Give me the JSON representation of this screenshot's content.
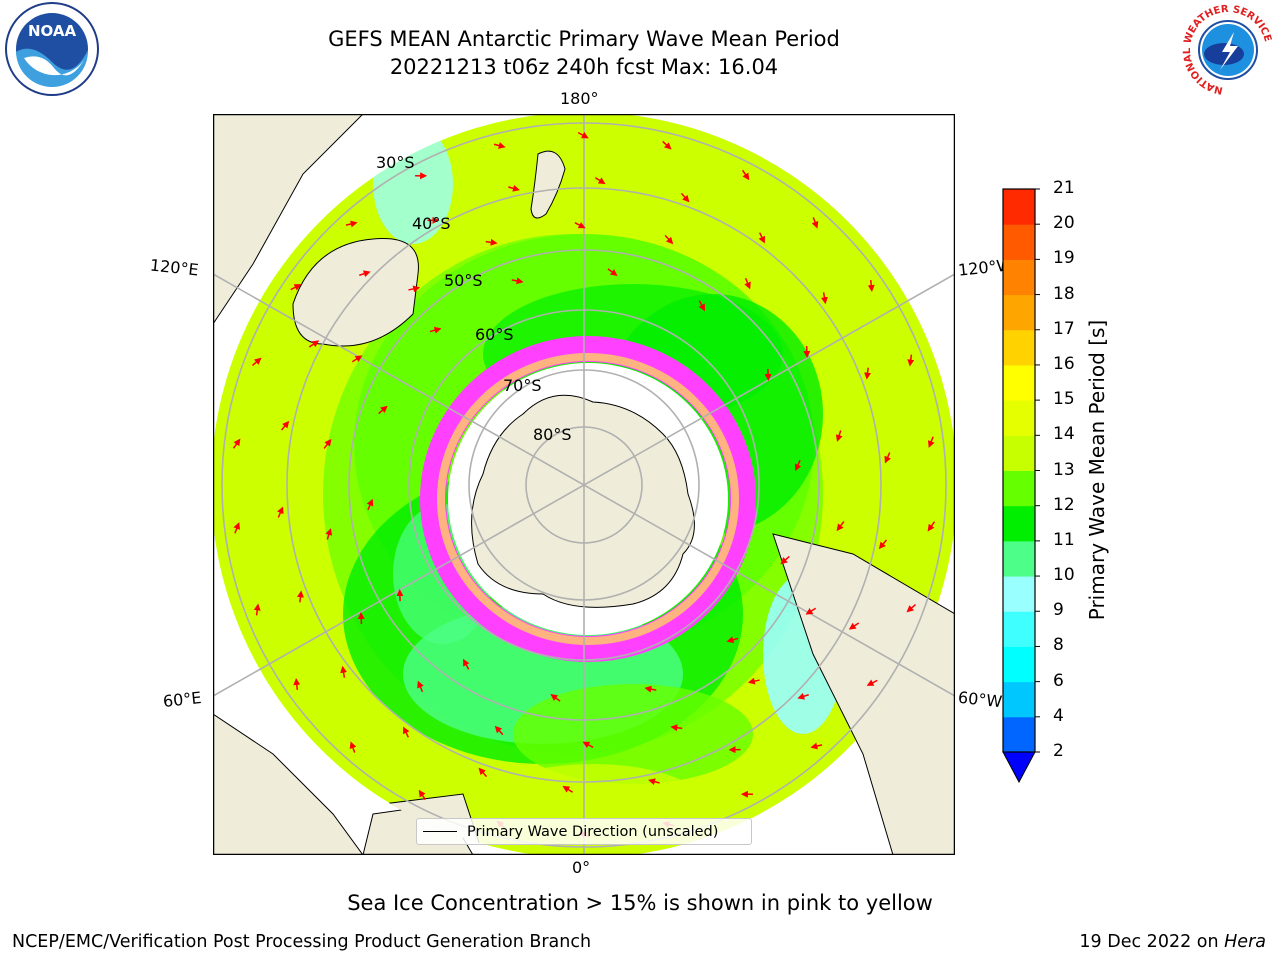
{
  "title": {
    "line1": "GEFS MEAN Antarctic Primary Wave Mean Period",
    "line2": "20221213 t06z 240h fcst   Max: 16.04"
  },
  "logos": {
    "left": "NOAA",
    "right_ring": "NATIONAL WEATHER SERVICE"
  },
  "map": {
    "longitude_labels": {
      "top": "180°",
      "bottom": "0°",
      "upper_left": "120°E",
      "upper_right": "120°W",
      "lower_left": "60°E",
      "lower_right": "60°W"
    },
    "latitude_labels": [
      "30°S",
      "40°S",
      "50°S",
      "60°S",
      "70°S",
      "80°S"
    ],
    "legend_label": "Primary Wave Direction (unscaled)"
  },
  "colorbar": {
    "title": "Primary Wave Mean Period [s]",
    "ticks": [
      "2",
      "4",
      "6",
      "8",
      "9",
      "10",
      "11",
      "12",
      "13",
      "14",
      "15",
      "16",
      "17",
      "18",
      "19",
      "20",
      "21"
    ],
    "colors": [
      "#0066ff",
      "#00c8ff",
      "#00ffff",
      "#40ffff",
      "#99ffff",
      "#4dff88",
      "#00ee00",
      "#66ff00",
      "#c8ff00",
      "#e6ff00",
      "#ffff00",
      "#ffd200",
      "#ffa500",
      "#ff8200",
      "#ff5a00",
      "#ff2a00"
    ],
    "extend_color": "#0000ff"
  },
  "caption": "Sea Ice Concentration > 15% is shown in pink to yellow",
  "footer": {
    "left": "NCEP/EMC/Verification Post Processing Product Generation Branch",
    "right_prefix": "19 Dec 2022 on ",
    "right_host": "Hera"
  }
}
